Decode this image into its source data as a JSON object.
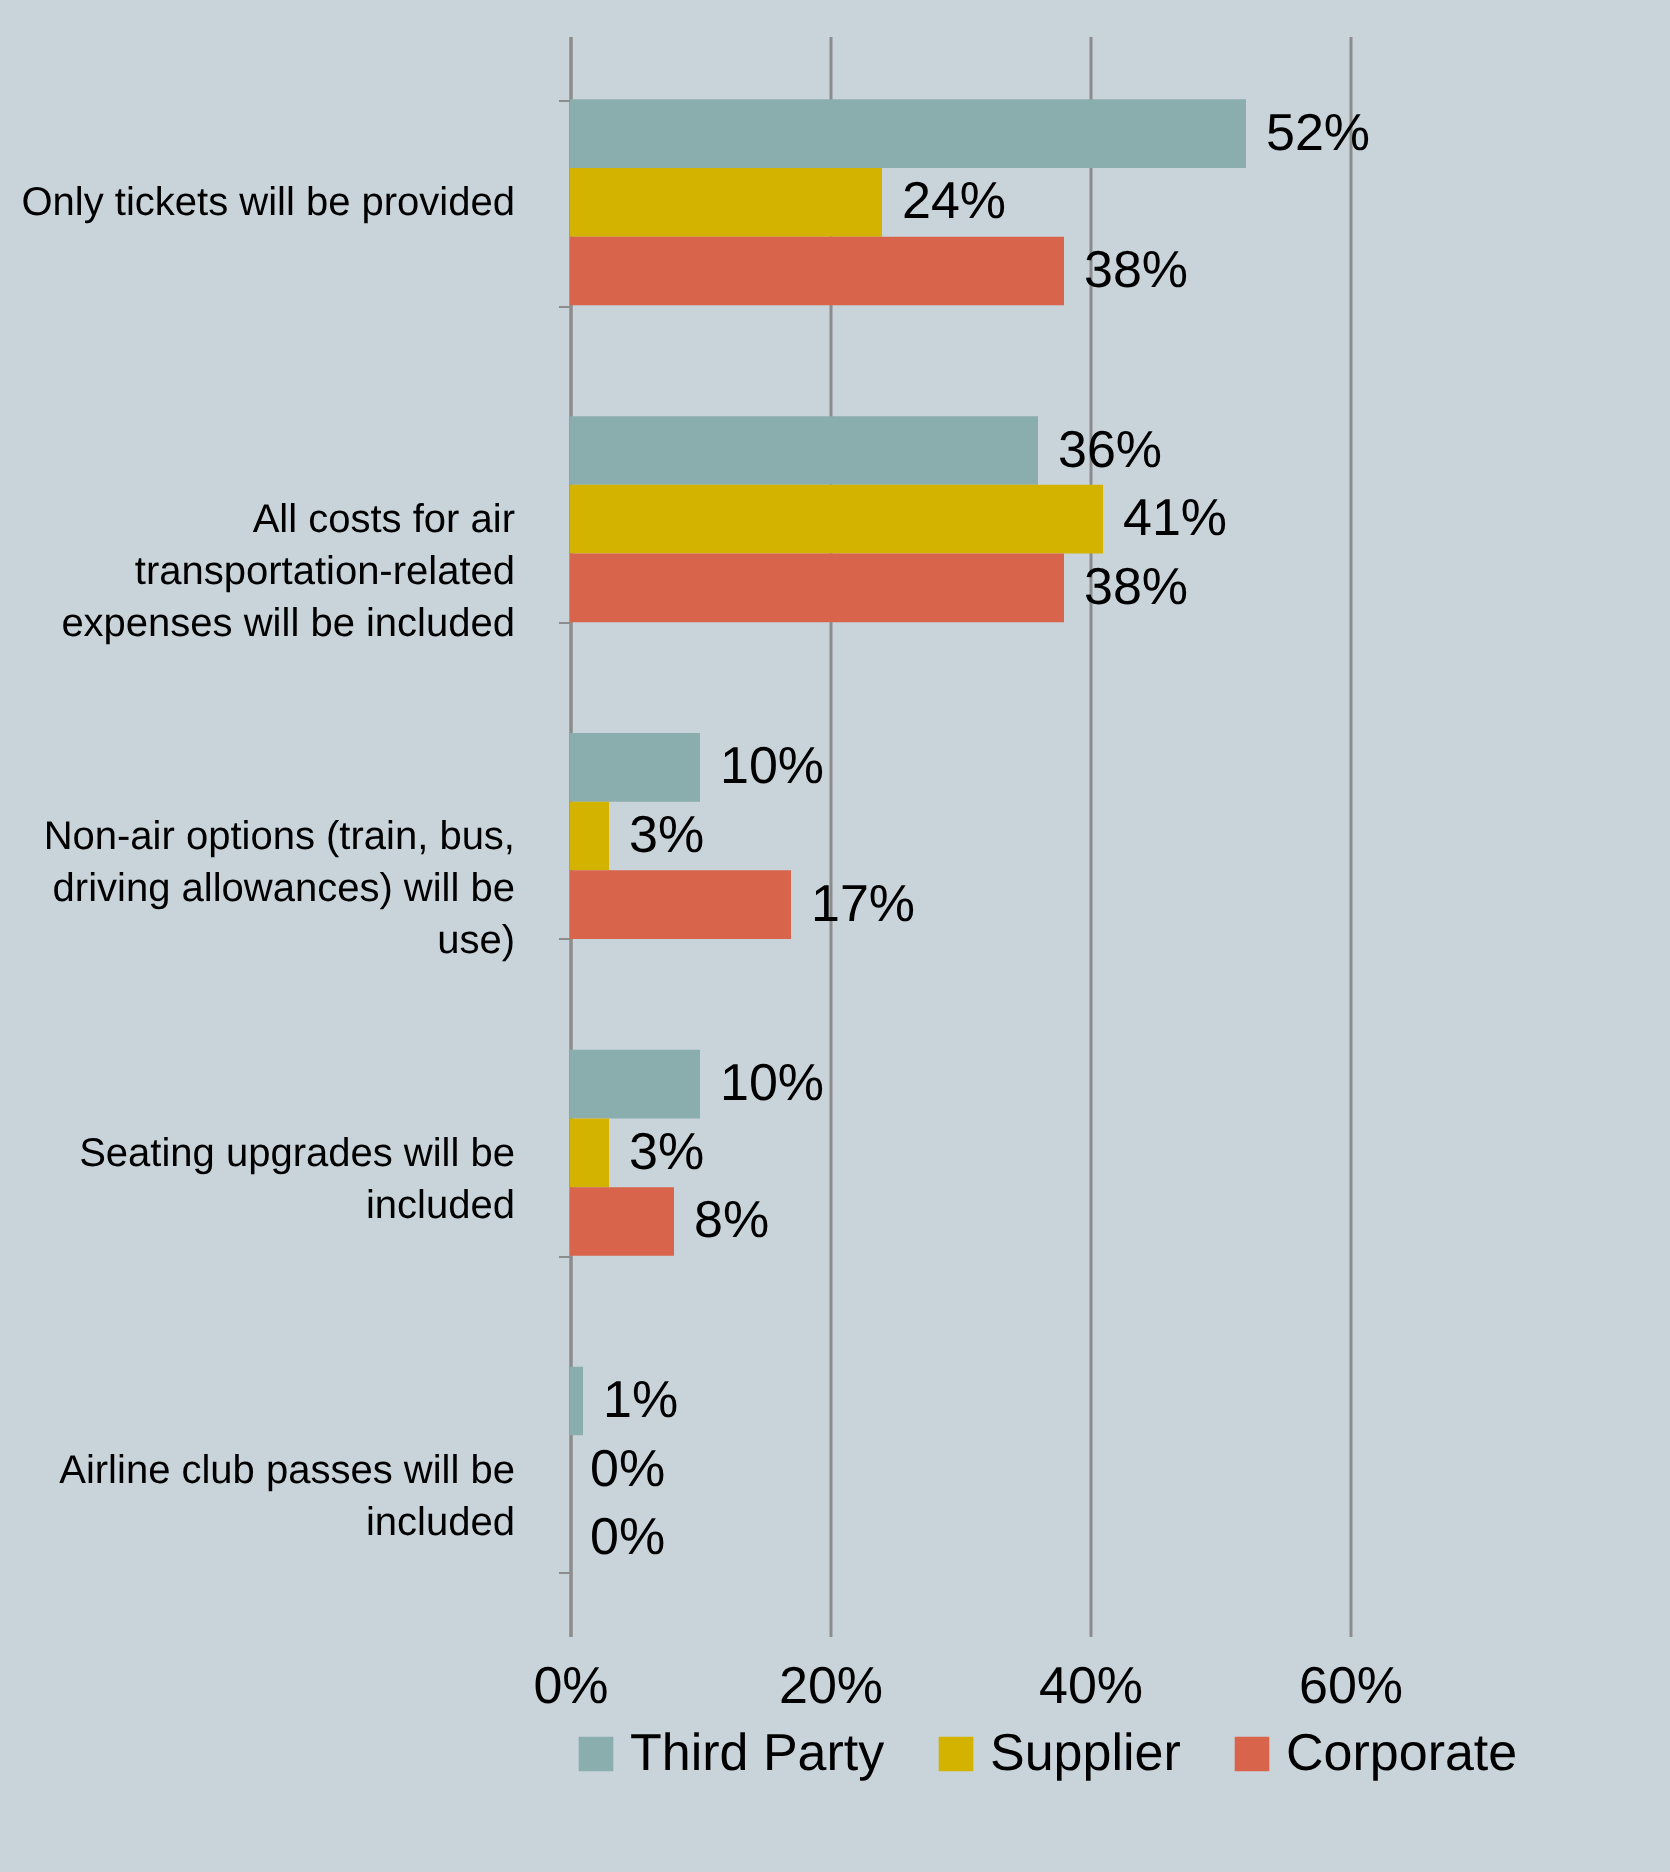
{
  "chart_data": {
    "type": "bar",
    "orientation": "horizontal",
    "categories": [
      "Only tickets will be provided",
      "All costs for air transportation-related expenses will be included",
      "Non-air options (train, bus, driving allowances) will be use)",
      "Seating upgrades will be included",
      "Airline club passes will be included"
    ],
    "series": [
      {
        "name": "Third Party",
        "color": "#8aadad",
        "values": [
          52,
          36,
          10,
          10,
          1
        ],
        "value_labels": [
          "52%",
          "36%",
          "10%",
          "10%",
          "1%"
        ]
      },
      {
        "name": "Supplier",
        "color": "#d4b200",
        "values": [
          24,
          41,
          3,
          3,
          0
        ],
        "value_labels": [
          "24%",
          "41%",
          "3%",
          "3%",
          "0%"
        ]
      },
      {
        "name": "Corporate",
        "color": "#d8654b",
        "values": [
          38,
          38,
          17,
          8,
          0
        ],
        "value_labels": [
          "38%",
          "38%",
          "17%",
          "8%",
          "0%"
        ]
      }
    ],
    "xlim": [
      0,
      60
    ],
    "xticks": [
      {
        "value": 0,
        "label": "0%"
      },
      {
        "value": 20,
        "label": "20%"
      },
      {
        "value": 40,
        "label": "40%"
      },
      {
        "value": 60,
        "label": "60%"
      }
    ],
    "grid": "x",
    "legend": "bottom"
  }
}
